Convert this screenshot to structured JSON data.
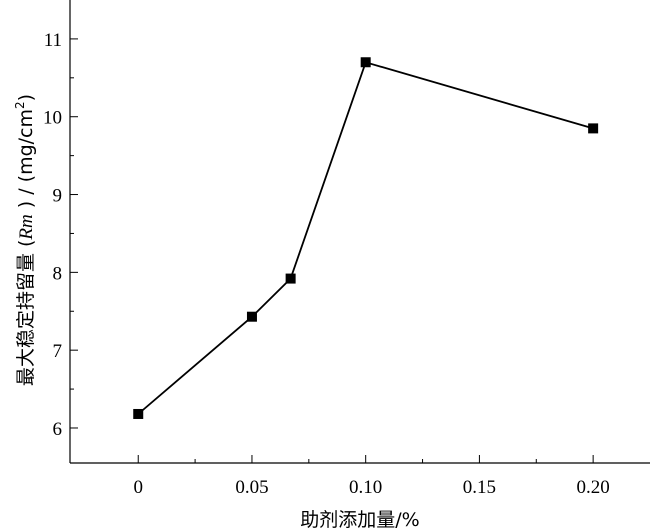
{
  "chart_data": {
    "type": "line",
    "title": "",
    "xlabel": "助剂添加量/%",
    "ylabel": {
      "prefix": "最大稳定持留量 (",
      "italic": "Rm",
      "mid": " ) / (mg/cm",
      "sup": "2",
      "suffix": ")"
    },
    "xlim": [
      -0.03,
      0.225
    ],
    "ylim": [
      5.55,
      11.5
    ],
    "xticks": [
      0,
      0.05,
      0.1,
      0.15,
      0.2
    ],
    "xtick_labels": [
      "0",
      "0.05",
      "0.10",
      "0.15",
      "0.20"
    ],
    "xminor_ticks": [
      0.025,
      0.075,
      0.125,
      0.175
    ],
    "yticks": [
      6,
      7,
      8,
      9,
      10,
      11
    ],
    "ytick_labels": [
      "6",
      "7",
      "8",
      "9",
      "10",
      "11"
    ],
    "yminor_ticks": [
      6.5,
      7.5,
      8.5,
      9.5,
      10.5
    ],
    "grid": false,
    "series": [
      {
        "marker": "square",
        "x": [
          0,
          0.05,
          0.067,
          0.1,
          0.2
        ],
        "y": [
          6.18,
          7.43,
          7.92,
          10.7,
          9.85
        ]
      }
    ]
  }
}
